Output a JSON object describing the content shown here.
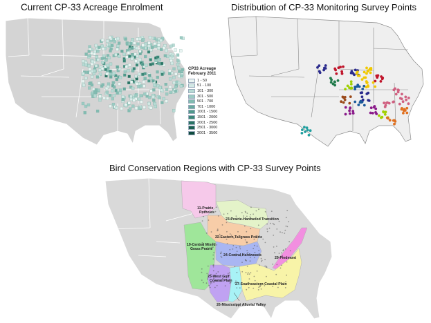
{
  "maps": {
    "enrolment": {
      "title": "Current CP-33 Acreage Enrolment",
      "legend_title_line1": "CP33 Acreage",
      "legend_title_line2": "February 2011",
      "legend": [
        {
          "label": "1 - 50",
          "color": "#eaf4f2"
        },
        {
          "label": "51 - 100",
          "color": "#d3e9e5"
        },
        {
          "label": "101 - 300",
          "color": "#b7dad4"
        },
        {
          "label": "301 - 500",
          "color": "#9ccbc3"
        },
        {
          "label": "501 - 700",
          "color": "#82bbb1"
        },
        {
          "label": "701 - 1000",
          "color": "#68aa9e"
        },
        {
          "label": "1001 - 1500",
          "color": "#50998b"
        },
        {
          "label": "1501 - 2000",
          "color": "#3b8777"
        },
        {
          "label": "2001 - 2500",
          "color": "#297363"
        },
        {
          "label": "2501 - 3000",
          "color": "#1b5f50"
        },
        {
          "label": "3001 - 3500",
          "color": "#0f4b3e"
        }
      ]
    },
    "survey_points": {
      "title": "Distribution of CP-33 Monitoring Survey Points",
      "cluster_colors": [
        "#2a2a8c",
        "#c0142a",
        "#f0c800",
        "#1f7a4a",
        "#9a4a1a",
        "#8a1a8a",
        "#20a0a0",
        "#6ab02a",
        "#e07020",
        "#d06080",
        "#1a5a9a",
        "#a0d000"
      ]
    },
    "bcr": {
      "title": "Bird Conservation Regions with CP-33 Survey Points",
      "regions": [
        {
          "label_line1": "11-Prairie",
          "label_line2": "Potholes",
          "color": "#f6c9ea"
        },
        {
          "label_line1": "23-Prairie-Hardwood Transition",
          "label_line2": "",
          "color": "#e4f3c9"
        },
        {
          "label_line1": "22-Eastern Tallgrass Prairie",
          "label_line2": "",
          "color": "#f7cda8"
        },
        {
          "label_line1": "19-Central Mixed",
          "label_line2": "Grass Prairie",
          "color": "#9fe69a"
        },
        {
          "label_line1": "24-Central Hardwoods",
          "label_line2": "",
          "color": "#a9b6f2"
        },
        {
          "label_line1": "29-Piedmont",
          "label_line2": "",
          "color": "#f28fe0"
        },
        {
          "label_line1": "25-West Gulf",
          "label_line2": "Coastal Plain",
          "color": "#c0a2f2"
        },
        {
          "label_line1": "27-Southeastern Coastal Plain",
          "label_line2": "",
          "color": "#f8f4a8"
        },
        {
          "label_line1": "26-Mississippi Alluvial Valley",
          "label_line2": "",
          "color": "#a8f2f6"
        }
      ]
    }
  }
}
